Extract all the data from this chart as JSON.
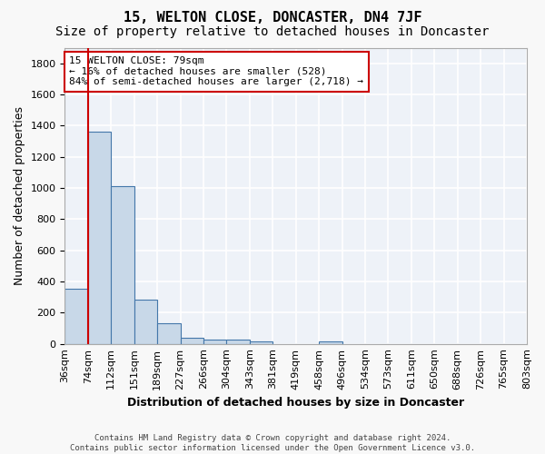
{
  "title": "15, WELTON CLOSE, DONCASTER, DN4 7JF",
  "subtitle": "Size of property relative to detached houses in Doncaster",
  "xlabel": "Distribution of detached houses by size in Doncaster",
  "ylabel": "Number of detached properties",
  "footnote1": "Contains HM Land Registry data © Crown copyright and database right 2024.",
  "footnote2": "Contains public sector information licensed under the Open Government Licence v3.0.",
  "bin_labels": [
    "36sqm",
    "74sqm",
    "112sqm",
    "151sqm",
    "189sqm",
    "227sqm",
    "266sqm",
    "304sqm",
    "343sqm",
    "381sqm",
    "419sqm",
    "458sqm",
    "496sqm",
    "534sqm",
    "573sqm",
    "611sqm",
    "650sqm",
    "688sqm",
    "726sqm",
    "765sqm",
    "803sqm"
  ],
  "bar_values": [
    355,
    1360,
    1010,
    285,
    130,
    40,
    30,
    25,
    18,
    0,
    0,
    18,
    0,
    0,
    0,
    0,
    0,
    0,
    0,
    0
  ],
  "bar_color": "#c8d8e8",
  "bar_edge_color": "#4477aa",
  "background_color": "#eef2f8",
  "grid_color": "#ffffff",
  "red_line_bin": 1,
  "ylim": [
    0,
    1900
  ],
  "yticks": [
    0,
    200,
    400,
    600,
    800,
    1000,
    1200,
    1400,
    1600,
    1800
  ],
  "annotation_title": "15 WELTON CLOSE: 79sqm",
  "annotation_line1": "← 16% of detached houses are smaller (528)",
  "annotation_line2": "84% of semi-detached houses are larger (2,718) →",
  "annotation_box_color": "#ffffff",
  "annotation_box_edge": "#cc0000",
  "property_line_color": "#cc0000",
  "title_fontsize": 11,
  "subtitle_fontsize": 10,
  "xlabel_fontsize": 9,
  "ylabel_fontsize": 9,
  "tick_fontsize": 8,
  "annotation_fontsize": 8
}
